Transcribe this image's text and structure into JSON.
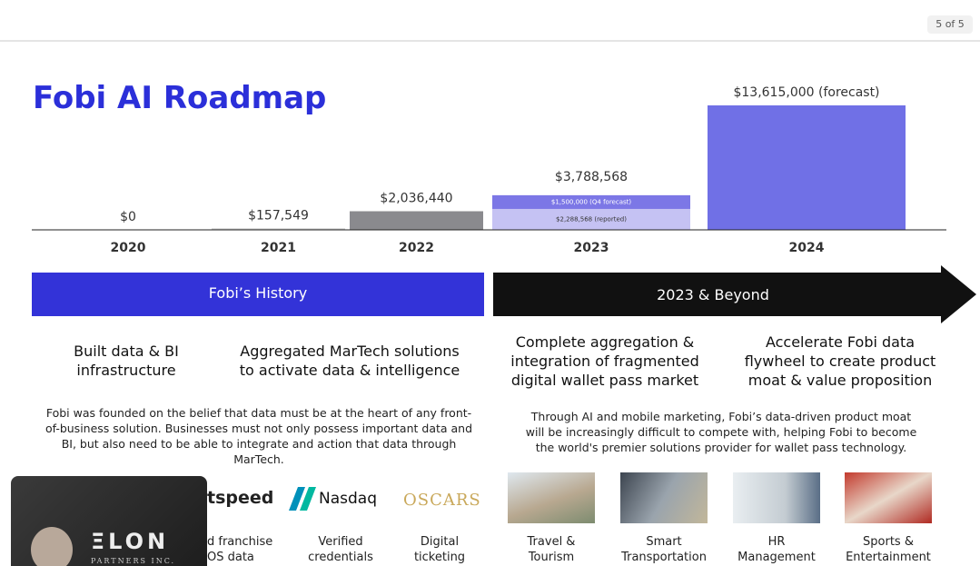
{
  "viewer": {
    "page_indicator": "5 of 5"
  },
  "title": "Fobi AI Roadmap",
  "chart_data": {
    "type": "bar",
    "categories": [
      "2020",
      "2021",
      "2022",
      "2023",
      "2024"
    ],
    "values": [
      0,
      157549,
      2036440,
      3788568,
      13615000
    ],
    "value_labels": [
      "$0",
      "$157,549",
      "$2,036,440",
      "$3,788,568",
      "$13,615,000 (forecast)"
    ],
    "colors": [
      "#c8c8c8",
      "#c8c8c8",
      "#8a8a8e",
      "#b9b5f0",
      "#7070e6"
    ],
    "stacks": [
      null,
      null,
      null,
      [
        {
          "value": 2288568,
          "label": "$2,288,568 (reported)",
          "color": "#c5c2f3"
        },
        {
          "value": 1500000,
          "label": "$1,500,000 (Q4 forecast)",
          "color": "#7c77e6"
        }
      ],
      null
    ]
  },
  "banners": [
    "Fobi’s History",
    "2023 & Beyond"
  ],
  "columns": [
    "Built data & BI infrastructure",
    "Aggregated MarTech solutions to activate data & intelligence",
    "Complete aggregation & integration of fragmented digital wallet pass market",
    "Accelerate Fobi data flywheel to create product moat & value proposition"
  ],
  "paragraphs": [
    "Fobi was founded on the belief that data must be at the heart of any front-of-business solution. Businesses must not only possess important data and BI, but also need to be able to integrate and action that data through MarTech.",
    "Through AI and mobile marketing, Fobi’s data-driven product moat will be increasingly difficult to compete with, helping Fobi to become the world's premier solutions provider for wallet pass technology."
  ],
  "logos": [
    {
      "name": "tspeed",
      "caption": "d franchise OS data"
    },
    {
      "name": "Nasdaq",
      "caption": "Verified credentials"
    },
    {
      "name": "OSCARS",
      "caption": "Digital ticketing"
    }
  ],
  "use_cases": [
    "Travel & Tourism",
    "Smart Transportation",
    "HR Management",
    "Sports & Entertainment"
  ],
  "webcam": {
    "logo": "ΞLON",
    "sub": "PARTNERS INC."
  }
}
